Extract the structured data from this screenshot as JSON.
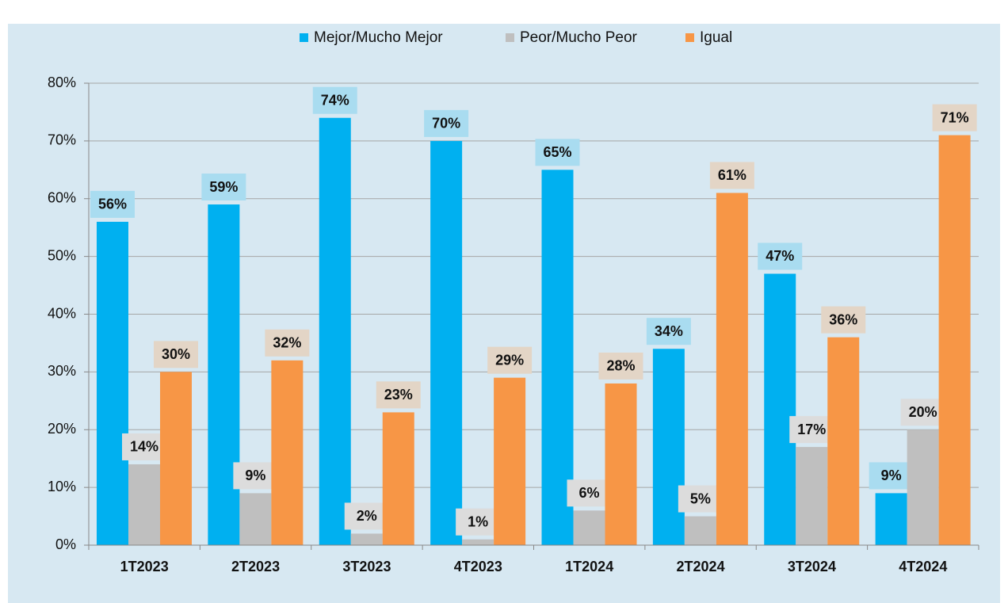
{
  "chart_data": {
    "type": "bar",
    "categories": [
      "1T2023",
      "2T2023",
      "3T2023",
      "4T2023",
      "1T2024",
      "2T2024",
      "3T2024",
      "4T2024"
    ],
    "series": [
      {
        "name": "Mejor/Mucho Mejor",
        "color": "#00b0f0",
        "label_color": "#a9dcf0",
        "values": [
          56,
          59,
          74,
          70,
          65,
          34,
          47,
          9
        ],
        "value_labels": [
          "56%",
          "59%",
          "74%",
          "70%",
          "65%",
          "34%",
          "47%",
          "9%"
        ]
      },
      {
        "name": "Peor/Mucho Peor",
        "color": "#bfbfbf",
        "label_color": "#dcdcdc",
        "values": [
          14,
          9,
          2,
          1,
          6,
          5,
          17,
          20
        ],
        "value_labels": [
          "14%",
          "9%",
          "2%",
          "1%",
          "6%",
          "5%",
          "17%",
          "20%"
        ]
      },
      {
        "name": "Igual",
        "color": "#f79646",
        "label_color": "#e3d5c6",
        "values": [
          30,
          32,
          23,
          29,
          28,
          61,
          36,
          71
        ],
        "value_labels": [
          "30%",
          "32%",
          "23%",
          "29%",
          "28%",
          "61%",
          "36%",
          "71%"
        ]
      }
    ],
    "ylim": [
      0,
      80
    ],
    "yticks": [
      {
        "value": 0,
        "label": "0%"
      },
      {
        "value": 10,
        "label": "10%"
      },
      {
        "value": 20,
        "label": "20%"
      },
      {
        "value": 30,
        "label": "30%"
      },
      {
        "value": 40,
        "label": "40%"
      },
      {
        "value": 50,
        "label": "50%"
      },
      {
        "value": 60,
        "label": "60%"
      },
      {
        "value": 70,
        "label": "70%"
      },
      {
        "value": 80,
        "label": "80%"
      }
    ],
    "grid": true
  }
}
